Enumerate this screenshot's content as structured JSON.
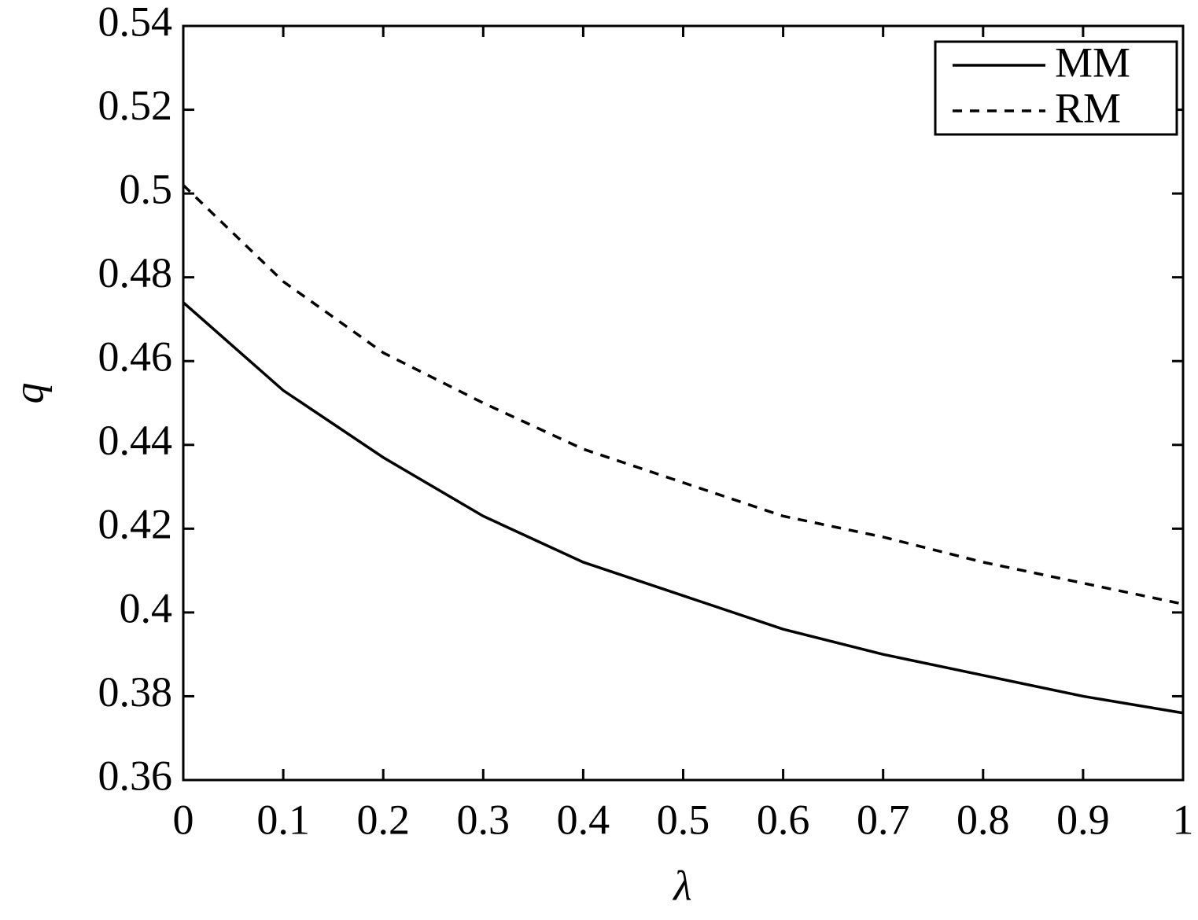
{
  "chart_data": {
    "type": "line",
    "x_label": "λ",
    "y_label": "q",
    "x": [
      0,
      0.1,
      0.2,
      0.3,
      0.4,
      0.5,
      0.6,
      0.7,
      0.8,
      0.9,
      1
    ],
    "series": [
      {
        "name": "MM",
        "color": "#000000",
        "style": "solid",
        "values": [
          0.474,
          0.453,
          0.437,
          0.423,
          0.412,
          0.404,
          0.396,
          0.39,
          0.385,
          0.38,
          0.376
        ]
      },
      {
        "name": "RM",
        "color": "#000000",
        "style": "dashed",
        "values": [
          0.502,
          0.479,
          0.462,
          0.45,
          0.439,
          0.431,
          0.423,
          0.418,
          0.412,
          0.407,
          0.402
        ]
      }
    ],
    "xlim": [
      0,
      1
    ],
    "xticks": [
      0,
      0.1,
      0.2,
      0.3,
      0.4,
      0.5,
      0.6,
      0.7,
      0.8,
      0.9,
      1
    ],
    "ylim": [
      0.36,
      0.54
    ],
    "yticks": [
      0.36,
      0.38,
      0.4,
      0.42,
      0.44,
      0.46,
      0.48,
      0.5,
      0.52,
      0.54
    ],
    "grid": false,
    "legend": "upper right"
  }
}
